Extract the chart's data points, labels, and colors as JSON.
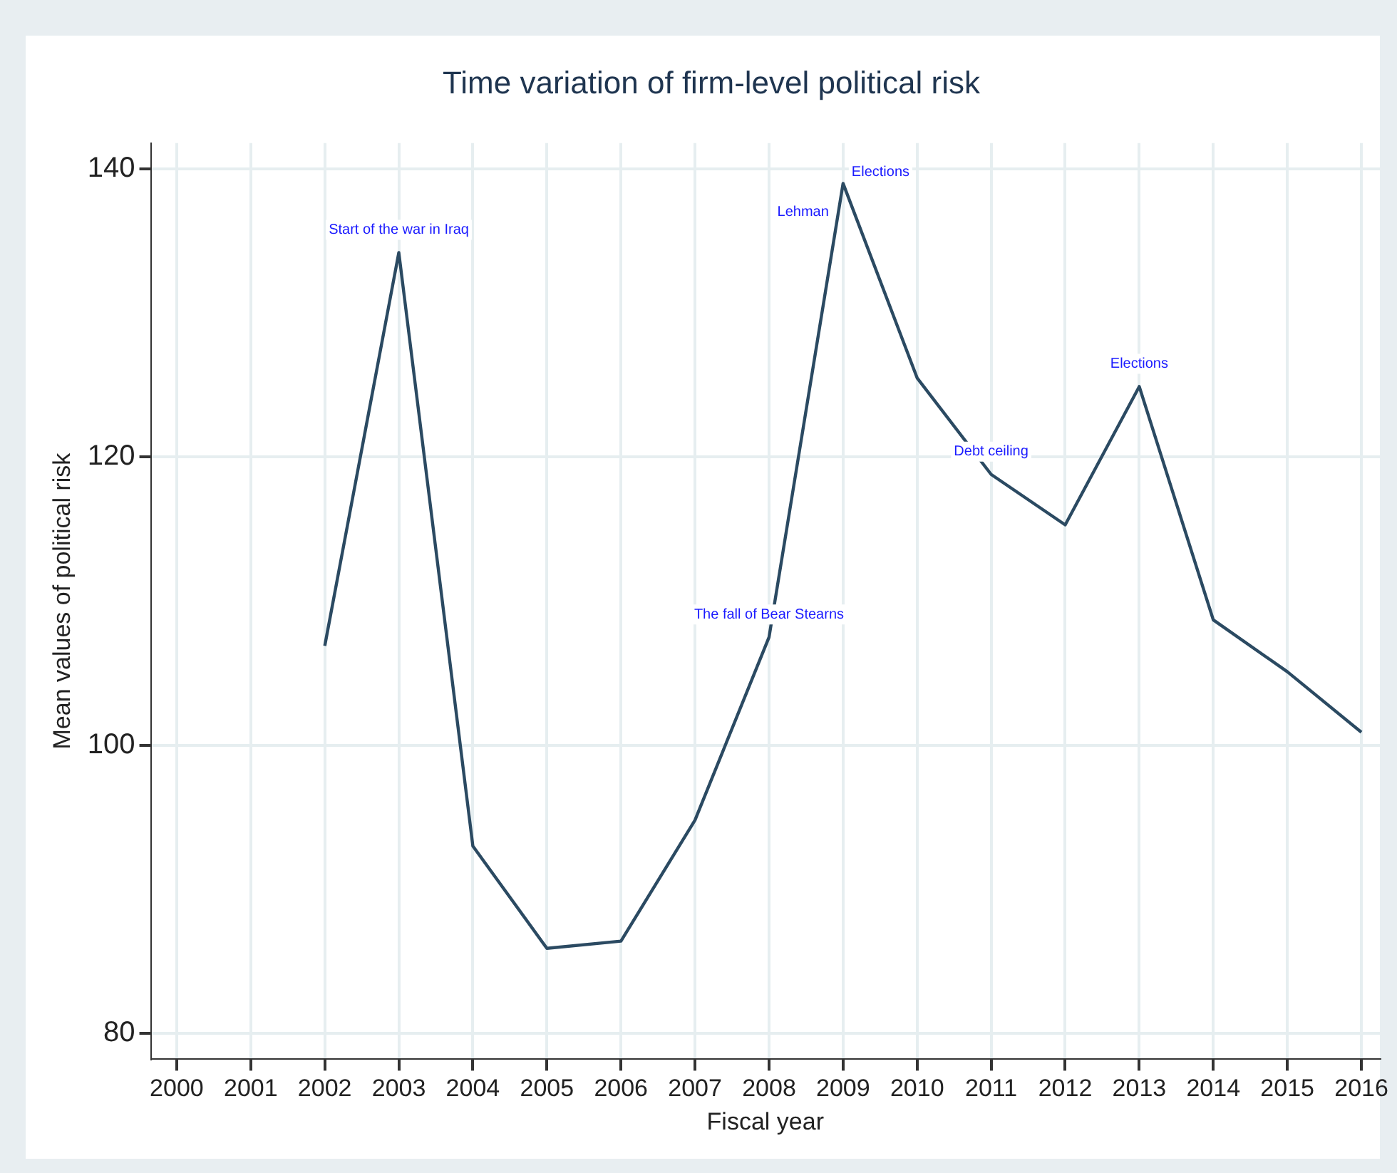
{
  "chart_data": {
    "type": "line",
    "title": "Time variation of firm-level political risk",
    "xlabel": "Fiscal year",
    "ylabel": "Mean values of political risk",
    "x": [
      2002,
      2003,
      2004,
      2005,
      2006,
      2007,
      2008,
      2009,
      2010,
      2011,
      2012,
      2013,
      2014,
      2015,
      2016
    ],
    "series": [
      {
        "color": "#2b4a62",
        "values": [
          106.9,
          134.2,
          93.0,
          85.9,
          86.4,
          94.8,
          107.5,
          139.0,
          125.5,
          118.8,
          115.3,
          124.9,
          108.7,
          105.1,
          100.9
        ]
      }
    ],
    "xlim": [
      1999.65,
      2016.25
    ],
    "xticks": [
      2000,
      2001,
      2002,
      2003,
      2004,
      2005,
      2006,
      2007,
      2008,
      2009,
      2010,
      2011,
      2012,
      2013,
      2014,
      2015,
      2016
    ],
    "ylim": [
      78.2,
      141.8
    ],
    "yticks": [
      80,
      100,
      120,
      140
    ],
    "grid": true,
    "legend": false,
    "marker": "none",
    "line_style": "solid",
    "annotations": [
      {
        "text": "Start of the war in Iraq",
        "x": 2003,
        "y": 134.2
      },
      {
        "text": "Lehman",
        "x": 2009,
        "y": 139.0
      },
      {
        "text": "Elections",
        "x": 2009,
        "y": 139.0
      },
      {
        "text": "The fall of Bear Stearns",
        "x": 2008,
        "y": 107.5
      },
      {
        "text": "Debt ceiling",
        "x": 2011,
        "y": 118.8
      },
      {
        "text": "Elections",
        "x": 2013,
        "y": 124.9
      }
    ]
  }
}
